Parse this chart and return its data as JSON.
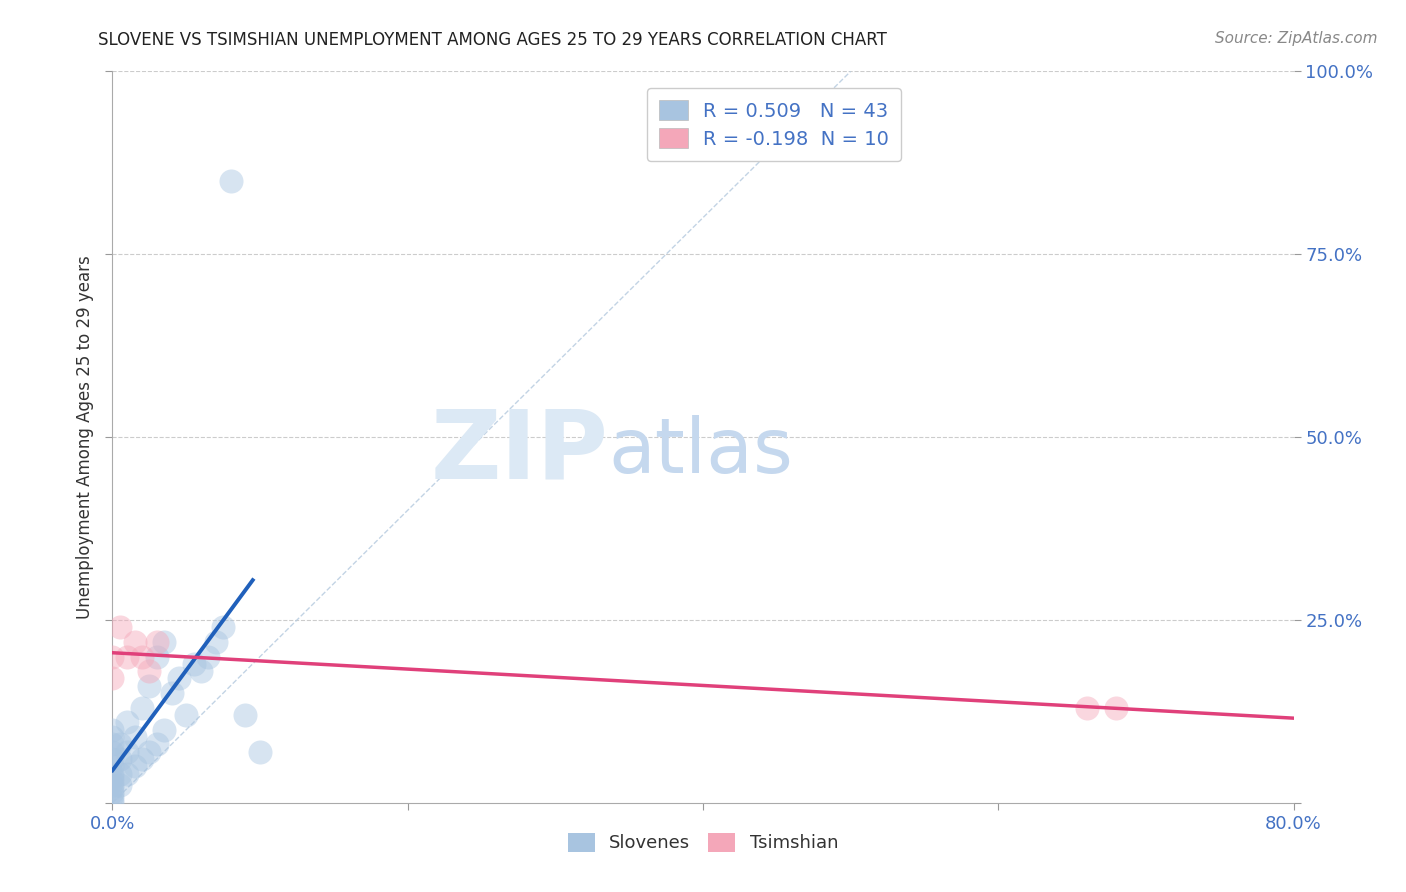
{
  "title": "SLOVENE VS TSIMSHIAN UNEMPLOYMENT AMONG AGES 25 TO 29 YEARS CORRELATION CHART",
  "source": "Source: ZipAtlas.com",
  "ylabel": "Unemployment Among Ages 25 to 29 years",
  "xlim": [
    0.0,
    0.8
  ],
  "ylim": [
    0.0,
    1.0
  ],
  "slovene_color": "#a8c4e0",
  "tsimshian_color": "#f4a7b9",
  "slovene_line_color": "#2060bb",
  "tsimshian_line_color": "#e0407a",
  "diagonal_color": "#b8cce0",
  "grid_color": "#cccccc",
  "label_color": "#4472c4",
  "R_slovene": 0.509,
  "N_slovene": 43,
  "R_tsimshian": -0.198,
  "N_tsimshian": 10,
  "slovene_x": [
    0.0,
    0.0,
    0.0,
    0.0,
    0.0,
    0.0,
    0.0,
    0.0,
    0.0,
    0.0,
    0.0,
    0.0,
    0.0,
    0.0,
    0.0,
    0.005,
    0.005,
    0.005,
    0.005,
    0.01,
    0.01,
    0.01,
    0.015,
    0.015,
    0.02,
    0.02,
    0.025,
    0.025,
    0.03,
    0.03,
    0.035,
    0.035,
    0.04,
    0.045,
    0.05,
    0.055,
    0.06,
    0.065,
    0.07,
    0.075,
    0.08,
    0.09,
    0.1
  ],
  "slovene_y": [
    0.0,
    0.005,
    0.01,
    0.015,
    0.02,
    0.025,
    0.03,
    0.035,
    0.04,
    0.05,
    0.06,
    0.07,
    0.08,
    0.09,
    0.1,
    0.025,
    0.04,
    0.06,
    0.08,
    0.04,
    0.07,
    0.11,
    0.05,
    0.09,
    0.06,
    0.13,
    0.07,
    0.16,
    0.08,
    0.2,
    0.1,
    0.22,
    0.15,
    0.17,
    0.12,
    0.19,
    0.18,
    0.2,
    0.22,
    0.24,
    0.85,
    0.12,
    0.07
  ],
  "tsimshian_x": [
    0.0,
    0.0,
    0.005,
    0.01,
    0.015,
    0.02,
    0.025,
    0.03,
    0.66,
    0.68
  ],
  "tsimshian_y": [
    0.17,
    0.2,
    0.24,
    0.2,
    0.22,
    0.2,
    0.18,
    0.22,
    0.13,
    0.13
  ],
  "watermark_zip": "ZIP",
  "watermark_atlas": "atlas",
  "watermark_color_zip": "#dce9f5",
  "watermark_color_atlas": "#c5d8ee",
  "legend_slovene_label": "Slovenes",
  "legend_tsimshian_label": "Tsimshian",
  "background_color": "#ffffff",
  "dot_size": 300,
  "dot_alpha": 0.45
}
